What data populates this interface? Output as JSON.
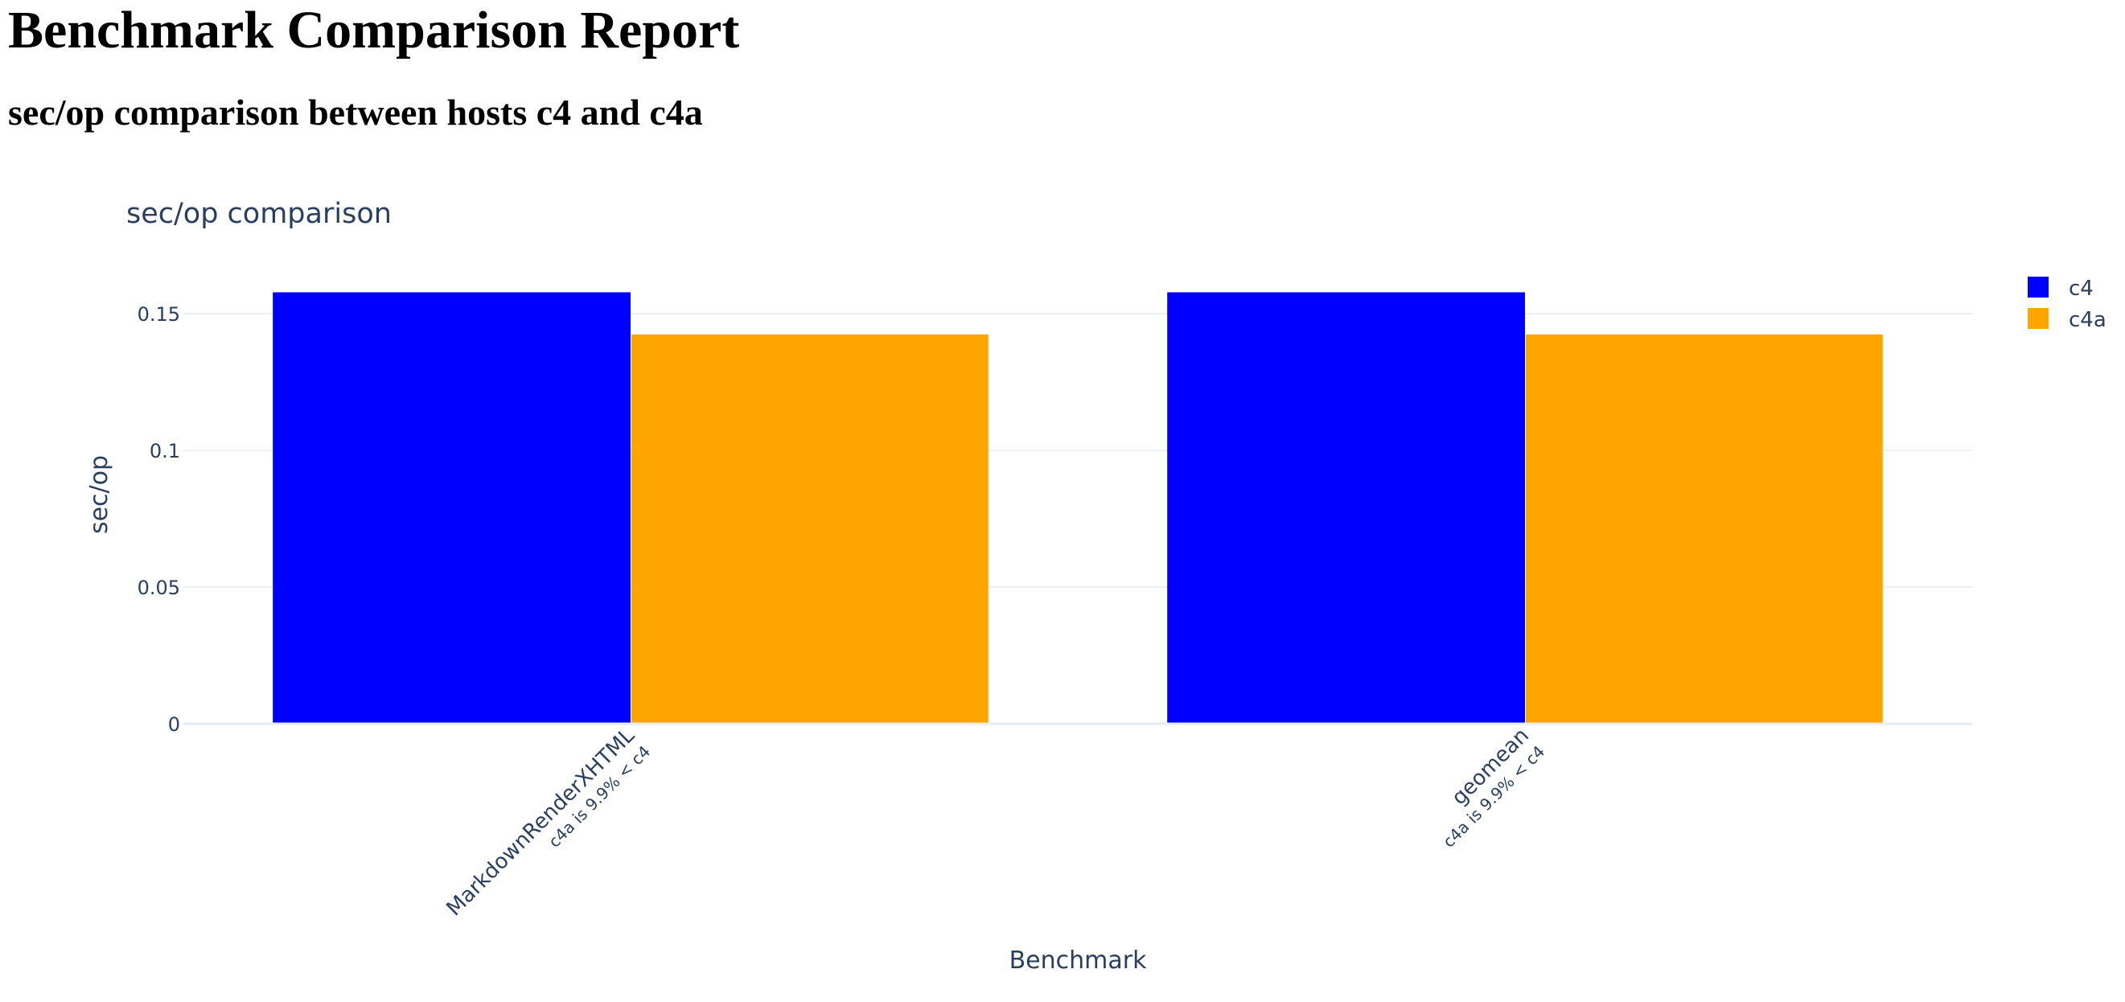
{
  "report": {
    "title": "Benchmark Comparison Report",
    "subtitle": "sec/op comparison between hosts c4 and c4a"
  },
  "chart_data": {
    "type": "bar",
    "title": "sec/op comparison",
    "xlabel": "Benchmark",
    "ylabel": "sec/op",
    "categories": [
      "MarkdownRenderXHTML",
      "geomean"
    ],
    "category_notes": [
      "c4a is 9.9% < c4",
      "c4a is 9.9% < c4"
    ],
    "series": [
      {
        "name": "c4",
        "color": "#0000ff",
        "values": [
          0.1578,
          0.1578
        ]
      },
      {
        "name": "c4a",
        "color": "#ffa500",
        "values": [
          0.1424,
          0.1424
        ]
      }
    ],
    "ylim": [
      0,
      0.16
    ],
    "yticks": [
      0,
      0.05,
      0.1,
      0.15
    ],
    "ytick_labels": [
      "0",
      "0.05",
      "0.1",
      "0.15"
    ],
    "grid": true,
    "legend_position": "top-right"
  }
}
